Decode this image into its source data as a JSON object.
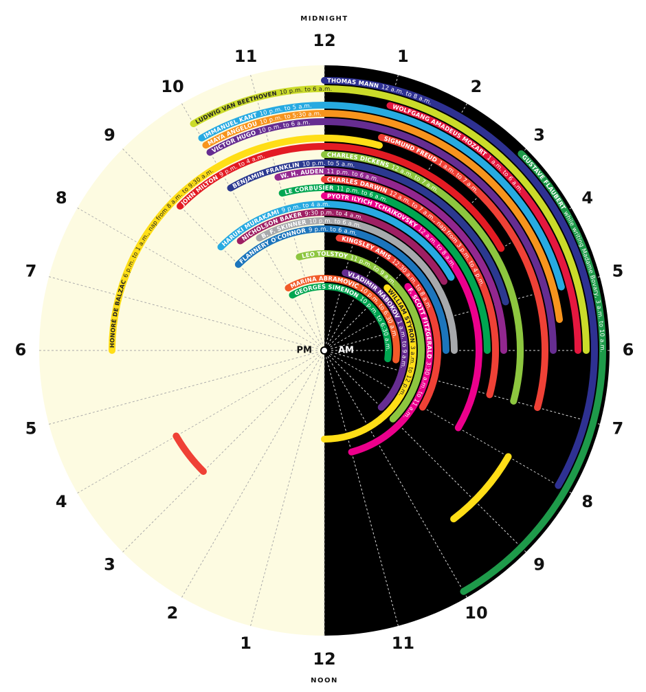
{
  "chart_data": {
    "type": "sleep_clock",
    "midnight_label": "MIDNIGHT",
    "noon_label": "NOON",
    "pm_label": "PM",
    "am_label": "AM",
    "ticks": [
      {
        "value": 0,
        "label": "12"
      },
      1,
      2,
      3,
      4,
      5,
      6,
      7,
      8,
      9,
      10,
      11,
      {
        "value": 12,
        "label": "12"
      },
      {
        "value": 13,
        "label": "1"
      },
      {
        "value": 14,
        "label": "2"
      },
      {
        "value": 15,
        "label": "3"
      },
      {
        "value": 16,
        "label": "4"
      },
      {
        "value": 17,
        "label": "5"
      },
      {
        "value": 18,
        "label": "6"
      },
      {
        "value": 19,
        "label": "7"
      },
      {
        "value": 20,
        "label": "8"
      },
      {
        "value": 21,
        "label": "9"
      },
      {
        "value": 22,
        "label": "10"
      },
      {
        "value": 23,
        "label": "11"
      }
    ],
    "series": [
      {
        "name": "GUSTAVE FLAUBERT",
        "label": "while writing Madame Bovary, 3 a.m. to 10 a.m.",
        "color": "#1e9a4a",
        "values": [
          [
            3,
            10
          ]
        ]
      },
      {
        "name": "THOMAS MANN",
        "label": "12 a.m. to 8 a.m.",
        "color": "#2e3192",
        "values": [
          [
            0,
            8
          ]
        ]
      },
      {
        "name": "LUDWIG VAN BEETHOVEN",
        "label": "10 p.m. to 6 a.m.",
        "color": "#cbdb2a",
        "values": [
          [
            22,
            6
          ]
        ]
      },
      {
        "name": "WOLFGANG AMADEUS MOZART",
        "label": "1 a.m. to 6 a.m.",
        "color": "#e5173f",
        "values": [
          [
            1,
            6
          ]
        ]
      },
      {
        "name": "IMMANUEL KANT",
        "label": "10 p.m. to 5 a.m.",
        "color": "#27aae1",
        "values": [
          [
            22,
            5
          ]
        ]
      },
      {
        "name": "MAYA ANGELOU",
        "label": "10 p.m. to 5:30 a.m.",
        "color": "#f7941d",
        "values": [
          [
            22,
            5.5
          ]
        ]
      },
      {
        "name": "VICTOR HUGO",
        "label": "10 p.m. to 6 a.m.",
        "color": "#662d91",
        "values": [
          [
            22,
            6
          ]
        ]
      },
      {
        "name": "SIGMUND FREUD",
        "label": "1 a.m. to 7 a.m.",
        "color": "#ef4136",
        "values": [
          [
            1,
            7
          ]
        ]
      },
      {
        "name": "HONORÉ DE BALZAC",
        "label": "6 p.m. to 1 a.m., nap from 8 a.m. to 9:30 a.m.",
        "color": "#ffde17",
        "values": [
          [
            18,
            1
          ],
          [
            8,
            9.5
          ]
        ]
      },
      {
        "name": "JOHN MILTON",
        "label": "9 p.m. to 4 a.m.",
        "color": "#e31b23",
        "values": [
          [
            21,
            4
          ]
        ]
      },
      {
        "name": "CHARLES DICKENS",
        "label": "12 a.m. to 7 a.m.",
        "color": "#8dc63f",
        "values": [
          [
            0,
            7
          ]
        ]
      },
      {
        "name": "BENJAMIN FRANKLIN",
        "label": "10 p.m. to 5 a.m.",
        "color": "#2b3990",
        "values": [
          [
            22,
            5
          ]
        ]
      },
      {
        "name": "W. H. AUDEN",
        "label": "11 p.m. to 6 a.m.",
        "color": "#92278f",
        "values": [
          [
            23,
            6
          ]
        ]
      },
      {
        "name": "CHARLES DARWIN",
        "label": "12 a.m. to 7 a.m., nap from 3 p.m. to 4 p.m.",
        "color": "#ef4136",
        "values": [
          [
            0,
            7
          ],
          [
            15,
            16
          ]
        ]
      },
      {
        "name": "LE CORBUSIER",
        "label": "11 p.m. to 6 a.m.",
        "color": "#00a651",
        "values": [
          [
            23,
            6
          ]
        ]
      },
      {
        "name": "PYOTR ILYICH TCHAIKOVSKY",
        "label": "12 a.m. to 8 a.m.",
        "color": "#ec008c",
        "values": [
          [
            0,
            8
          ]
        ]
      },
      {
        "name": "HARUKI MURAKAMI",
        "label": "9 p.m. to 4 a.m.",
        "color": "#27aae1",
        "values": [
          [
            21,
            4
          ]
        ]
      },
      {
        "name": "NICHOLSON BAKER",
        "label": "9:30 p.m. to 4 a.m.",
        "color": "#9e1f63",
        "values": [
          [
            21.5,
            4
          ]
        ]
      },
      {
        "name": "B. F. SKINNER",
        "label": "10 p.m. to 6 a.m.",
        "color": "#a7a9ac",
        "values": [
          [
            22,
            6
          ]
        ]
      },
      {
        "name": "FLANNERY O'CONNOR",
        "label": "9 p.m. to 6 a.m.",
        "color": "#1c75bc",
        "values": [
          [
            21,
            6
          ]
        ]
      },
      {
        "name": "KINGSLEY AMIS",
        "label": "12:30 a.m. to 8 a.m.",
        "color": "#ef4136",
        "values": [
          [
            0.5,
            8
          ]
        ]
      },
      {
        "name": "F. SCOTT FITZGERALD",
        "label": "3:30 a.m. to 11 a.m.",
        "color": "#ec008c",
        "values": [
          [
            3.5,
            11
          ]
        ]
      },
      {
        "name": "LEO TOLSTOY",
        "label": "11 p.m. to 9 a.m.",
        "color": "#8dc63f",
        "values": [
          [
            23,
            9
          ]
        ]
      },
      {
        "name": "WILLIAM STYRON",
        "label": "3 a.m. to 12 p.m.",
        "color": "#ffde17",
        "values": [
          [
            3,
            12
          ]
        ]
      },
      {
        "name": "VLADIMIR NABOKOV",
        "label": "1 a.m. to 9 a.m.",
        "color": "#662d91",
        "values": [
          [
            1,
            9
          ]
        ]
      },
      {
        "name": "MARINA ABRAMOVIĆ",
        "label": "10 p.m. to 6:30 a.m.",
        "color": "#f15a29",
        "values": [
          [
            22,
            6.5
          ]
        ]
      },
      {
        "name": "GEORGES SIMENON",
        "label": "10 p.m. to 6:30 a.m.",
        "color": "#00a651",
        "values": [
          [
            22,
            6.5
          ]
        ]
      }
    ]
  }
}
